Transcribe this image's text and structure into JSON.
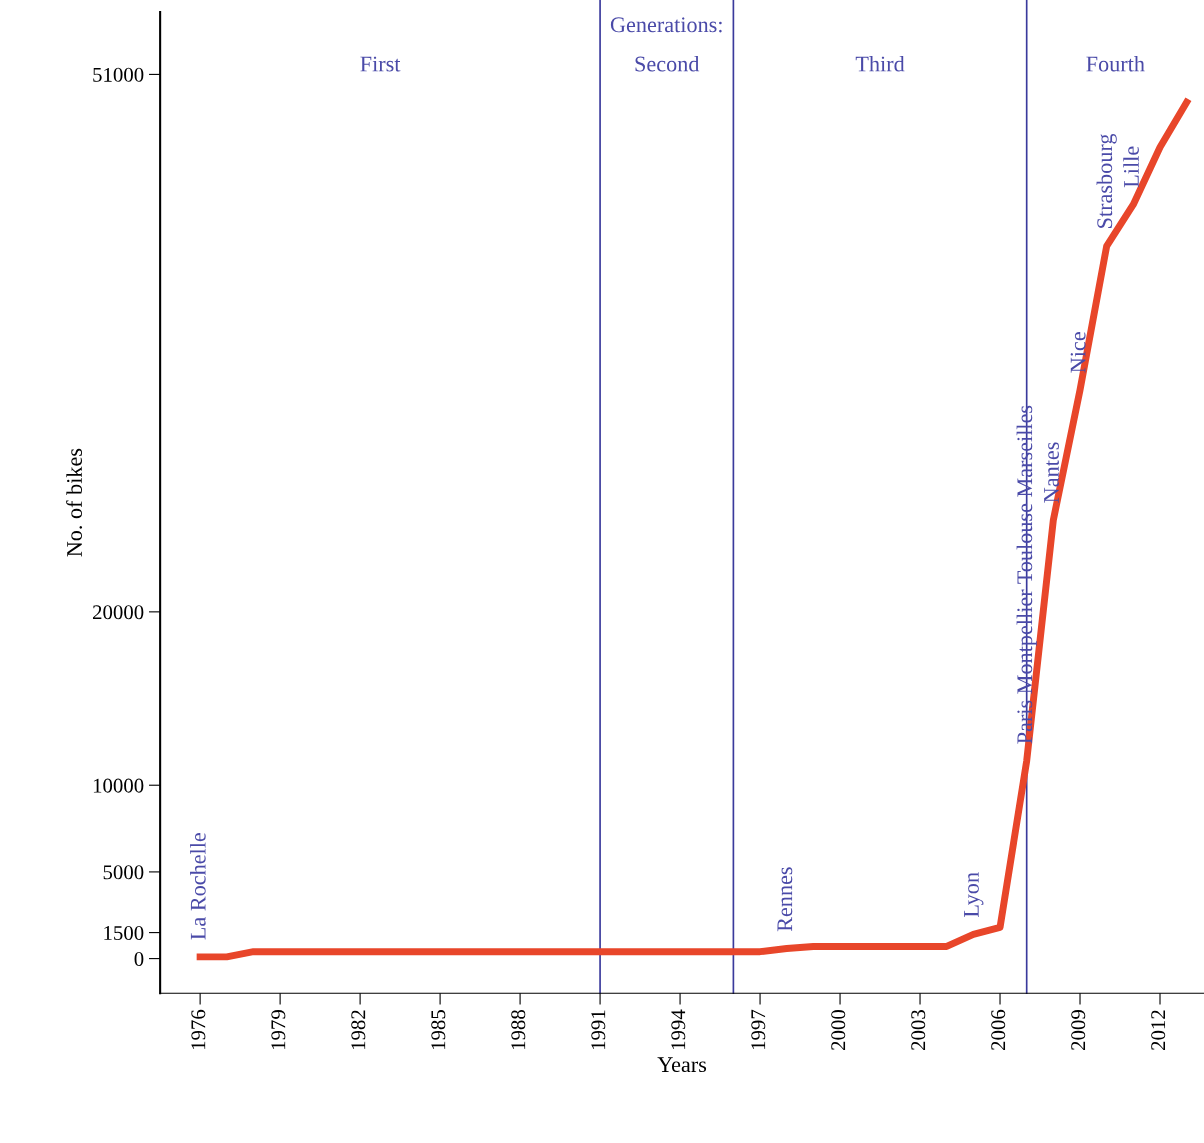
{
  "chart_data": {
    "type": "line",
    "xlabel": "Years",
    "ylabel": "No. of bikes",
    "x": [
      1976,
      1977,
      1978,
      1980,
      1985,
      1990,
      1995,
      1997,
      1998,
      1999,
      2000,
      2002,
      2004,
      2005,
      2006,
      2007,
      2008,
      2009,
      2010,
      2011,
      2012,
      2013
    ],
    "series": [
      {
        "color": "#e8462a",
        "values": [
          100,
          100,
          400,
          400,
          400,
          400,
          400,
          400,
          580,
          700,
          700,
          700,
          700,
          1400,
          1800,
          11400,
          25300,
          32800,
          41100,
          43500,
          46800,
          49400
        ]
      }
    ],
    "xlim": [
      1974.5,
      2013.65
    ],
    "ylim": [
      -2000,
      54600
    ],
    "xticks": [
      1976,
      1979,
      1982,
      1985,
      1988,
      1991,
      1994,
      1997,
      2000,
      2003,
      2006,
      2009,
      2012
    ],
    "yticks": [
      0,
      1500,
      5000,
      10000,
      20000,
      51000
    ],
    "ref_lines": [
      {
        "axis": "x",
        "value": 1991,
        "color": "#3a3a9c"
      },
      {
        "axis": "x",
        "value": 1996,
        "color": "#3a3a9c"
      },
      {
        "axis": "x",
        "value": 2007,
        "color": "#3a3a9c"
      }
    ],
    "annotations": [
      "Generations:",
      "First",
      "Second",
      "Third",
      "Fourth",
      {
        "text": "La Rochelle",
        "x": 1976,
        "y": 100
      },
      {
        "text": "Rennes",
        "x": 1998,
        "y": 580
      },
      {
        "text": "Lyon",
        "x": 2005,
        "y": 1400
      },
      {
        "text": "Paris Montpellier Toulouse Marseilles",
        "x": 2007,
        "y": 11400
      },
      {
        "text": "Nantes",
        "x": 2008,
        "y": 25300
      },
      {
        "text": "Nice",
        "x": 2009,
        "y": 32800
      },
      {
        "text": "Strasbourg",
        "x": 2010,
        "y": 41100
      },
      {
        "text": "Lille",
        "x": 2011,
        "y": 43500
      }
    ],
    "grid": false,
    "legend": false,
    "marker": "none",
    "line_style": "solid"
  }
}
